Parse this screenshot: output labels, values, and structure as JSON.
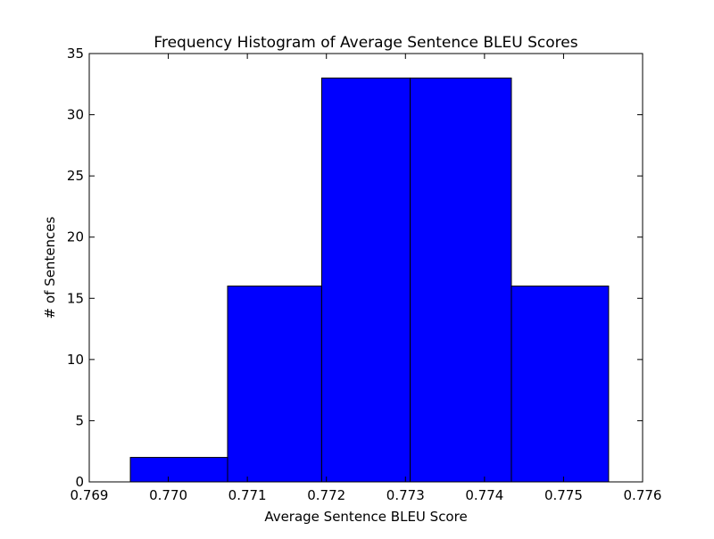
{
  "chart_data": {
    "type": "bar",
    "title": "Frequency Histogram of Average Sentence BLEU Scores",
    "xlabel": "Average Sentence BLEU Score",
    "ylabel": "# of Sentences",
    "xlim": [
      0.769,
      0.776
    ],
    "ylim": [
      0,
      35
    ],
    "x_ticks": [
      "0.769",
      "0.770",
      "0.771",
      "0.772",
      "0.773",
      "0.774",
      "0.775",
      "0.776"
    ],
    "y_ticks": [
      "0",
      "5",
      "10",
      "15",
      "20",
      "25",
      "30",
      "35"
    ],
    "bins": [
      {
        "x0": 0.76952,
        "x1": 0.77075,
        "count": 2
      },
      {
        "x0": 0.77075,
        "x1": 0.77194,
        "count": 16
      },
      {
        "x0": 0.77194,
        "x1": 0.77306,
        "count": 33
      },
      {
        "x0": 0.77306,
        "x1": 0.77434,
        "count": 33
      },
      {
        "x0": 0.77434,
        "x1": 0.77557,
        "count": 16
      }
    ],
    "bar_color": "#0000ff",
    "edge_color": "#000000",
    "grid": false,
    "legend": "none"
  }
}
